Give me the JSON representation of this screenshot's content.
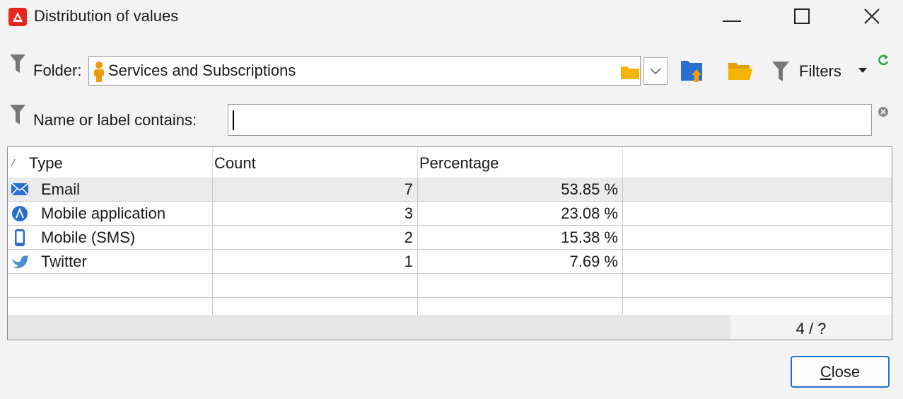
{
  "window": {
    "title": "Distribution of values"
  },
  "toolbar": {
    "folder_label": "Folder:",
    "folder_value": "Services and Subscriptions",
    "filters": "Filters"
  },
  "search": {
    "label": "Name or label contains:"
  },
  "table": {
    "headers": [
      "Type",
      "Count",
      "Percentage"
    ],
    "rows": [
      [
        "Email",
        "7",
        "53.85 %"
      ],
      [
        "Mobile application",
        "3",
        "23.08 %"
      ],
      [
        "Mobile (SMS)",
        "2",
        "15.38 %"
      ],
      [
        "Twitter",
        "1",
        "7.69 %"
      ]
    ],
    "pager": "4 / ?"
  },
  "buttons": {
    "close": "Close"
  }
}
